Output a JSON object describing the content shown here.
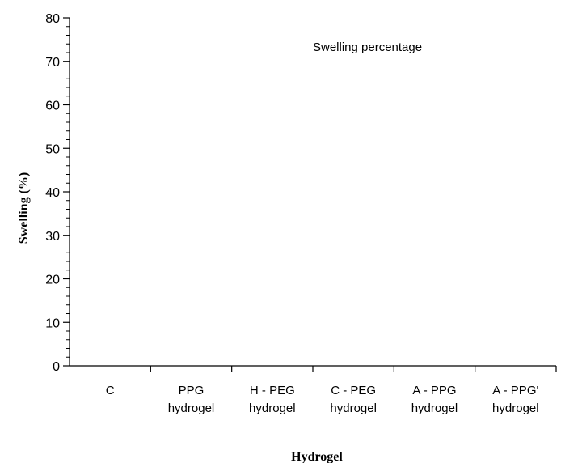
{
  "chart_data": {
    "type": "bar",
    "title": "",
    "xlabel": "Hydrogel",
    "ylabel": "Swelling (%)",
    "ylim": [
      0,
      80
    ],
    "y_ticks": [
      "0",
      "10",
      "20",
      "30",
      "40",
      "50",
      "60",
      "70",
      "80"
    ],
    "categories": [
      [
        "C"
      ],
      [
        "PPG",
        "hydrogel"
      ],
      [
        "H - PEG",
        "hydrogel"
      ],
      [
        "C - PEG",
        "hydrogel"
      ],
      [
        "A - PPG",
        "hydrogel"
      ],
      [
        "A - PPG'",
        "hydrogel"
      ]
    ],
    "series": [
      {
        "name": "Swelling percentage",
        "values": [
          0,
          0,
          0,
          0,
          0,
          0
        ]
      }
    ],
    "grid": false,
    "legend": "top-right"
  }
}
